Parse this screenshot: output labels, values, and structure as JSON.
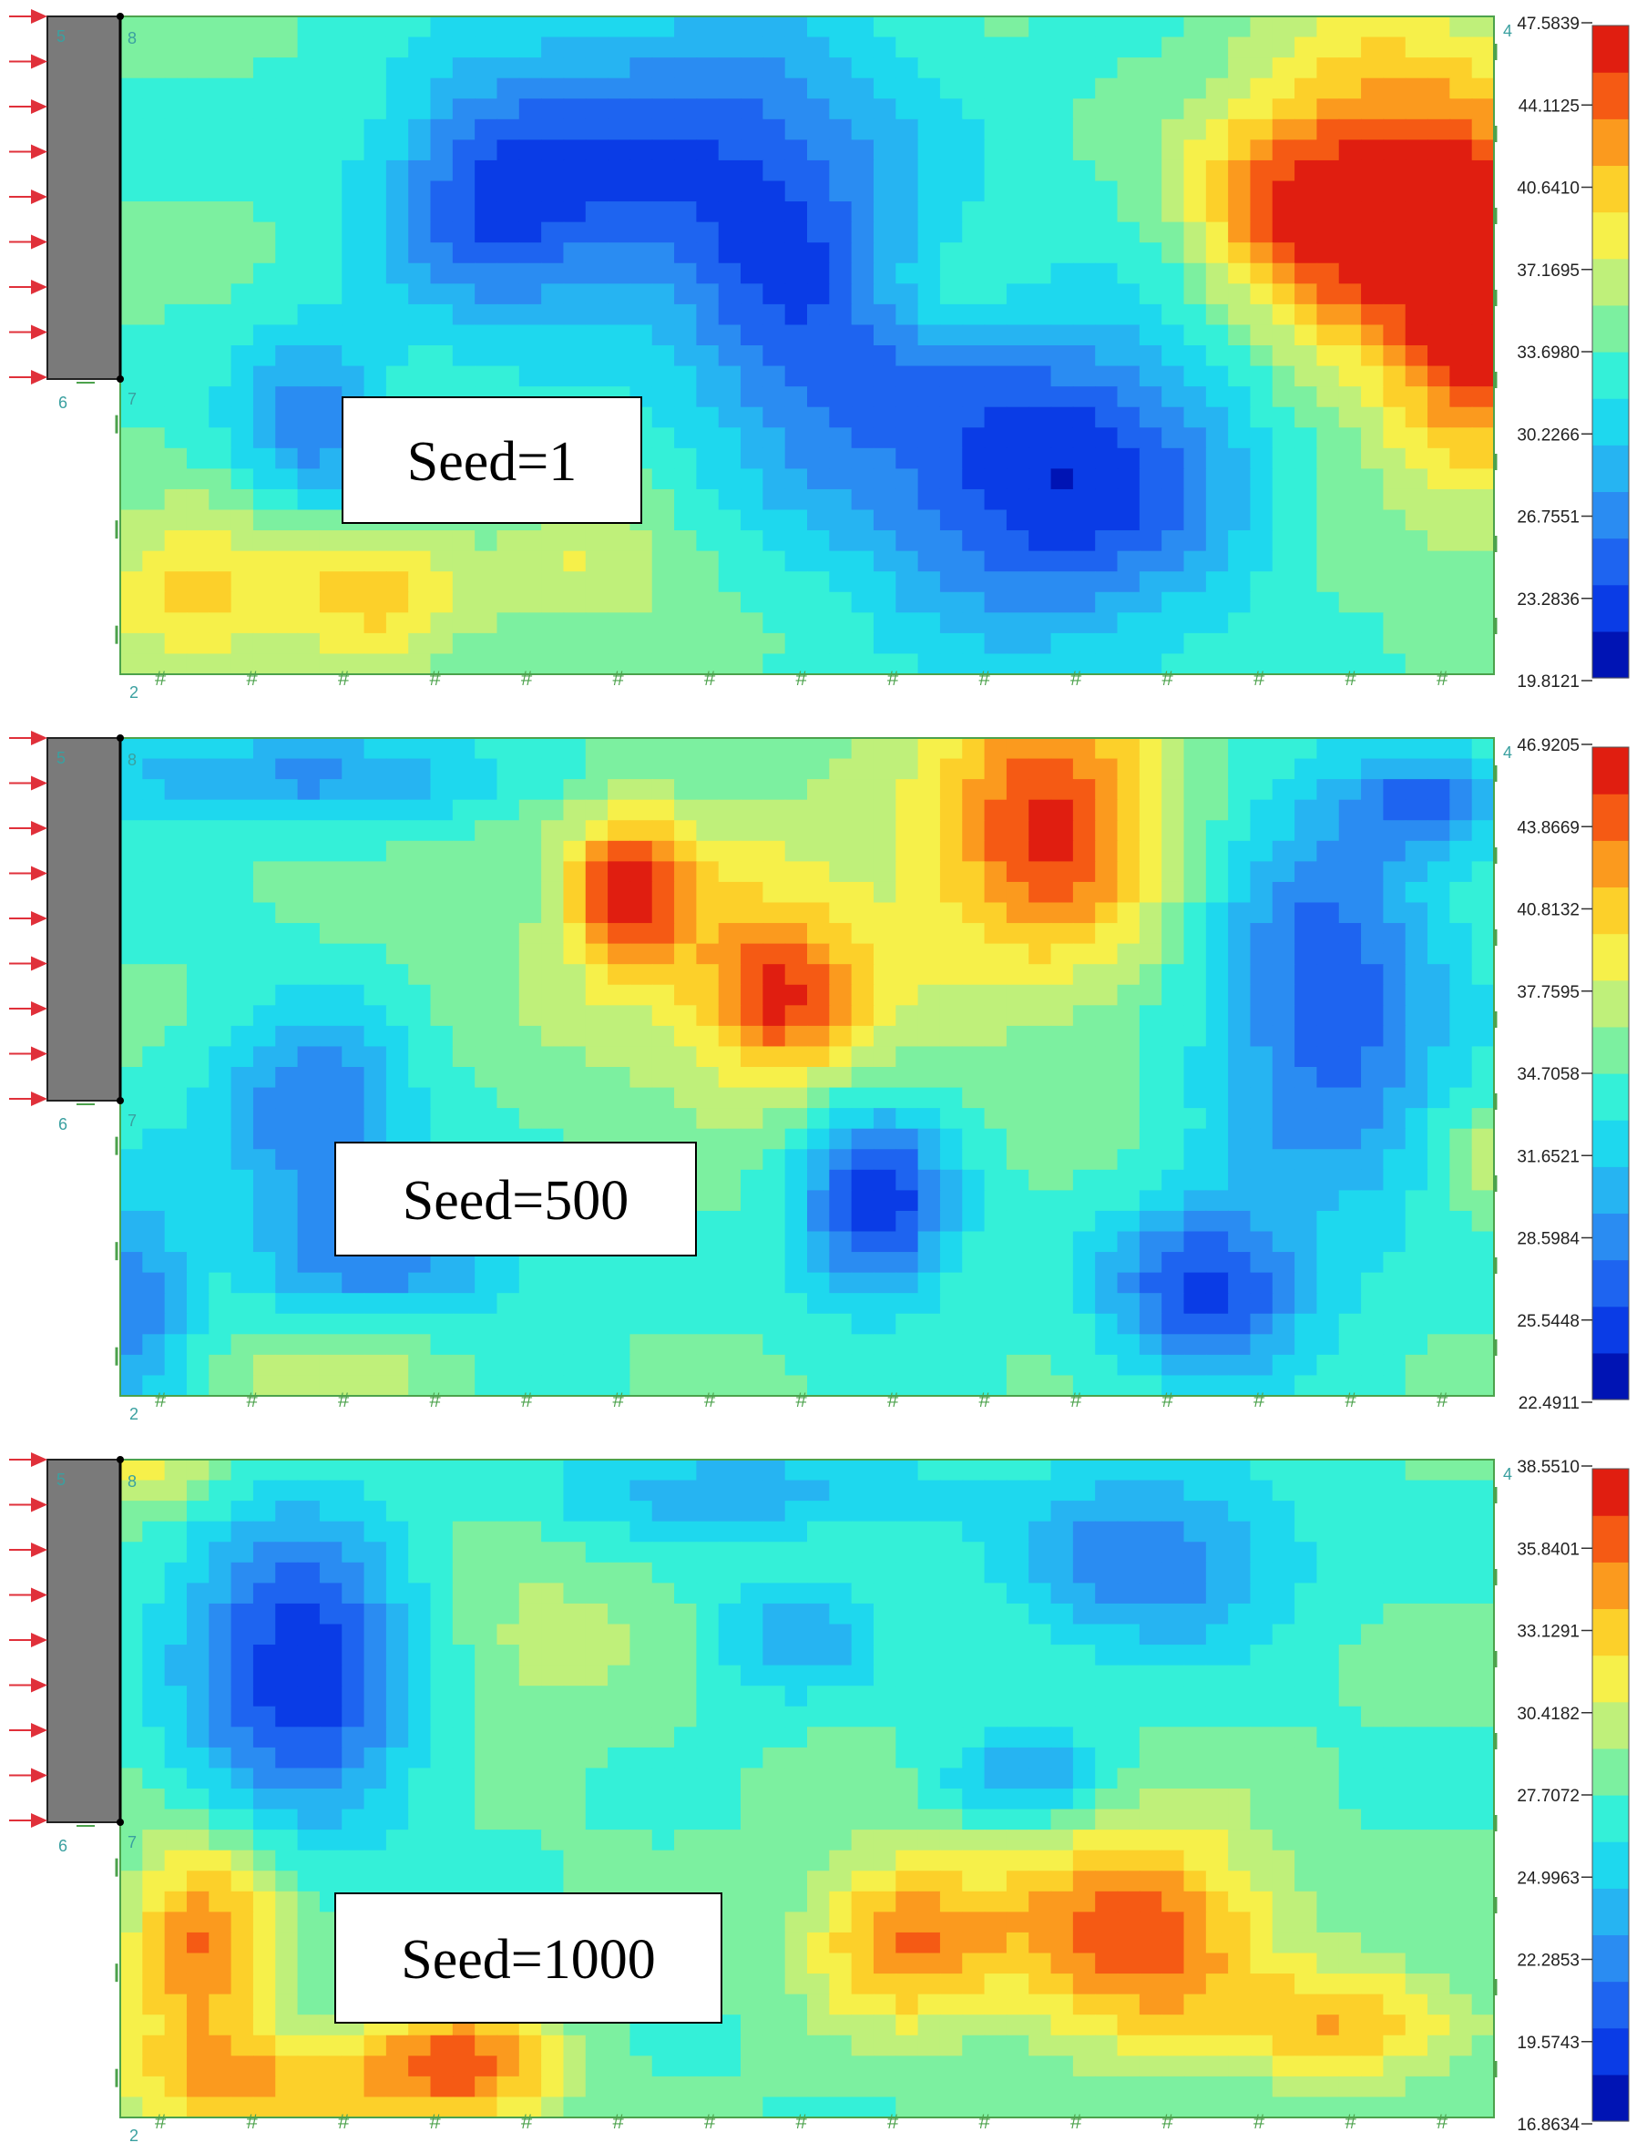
{
  "colors": {
    "scale": [
      "#0014b4",
      "#0a3ce6",
      "#1e64f0",
      "#2a8cf2",
      "#26b4f2",
      "#1ed8ee",
      "#34f0d8",
      "#7cf0a0",
      "#bff07a",
      "#f6f04a",
      "#fcd02a",
      "#fb9a1e",
      "#f55a14",
      "#e01e10"
    ],
    "wall": "#7a7a7a",
    "arrow": "#e0303a",
    "border": "#4ca24c",
    "node_label": "#3aa0a0"
  },
  "node_labels": [
    "5",
    "6",
    "7",
    "8",
    "4",
    "2"
  ],
  "chart_data": [
    {
      "type": "heatmap",
      "label": "Seed=1",
      "colorbar_ticks": [
        "47.5839",
        "44.1125",
        "40.6410",
        "37.1695",
        "33.6980",
        "30.2266",
        "26.7551",
        "23.2836",
        "19.8121"
      ],
      "range": [
        19.8121,
        47.5839
      ],
      "blobs": [
        {
          "x": 0.92,
          "y": 0.3,
          "sx": 0.07,
          "sy": 0.2,
          "v": 1.0
        },
        {
          "x": 0.99,
          "y": 0.45,
          "sx": 0.04,
          "sy": 0.2,
          "v": 0.8
        },
        {
          "x": 0.84,
          "y": 0.28,
          "sx": 0.05,
          "sy": 0.1,
          "v": 0.5
        },
        {
          "x": 0.68,
          "y": 0.7,
          "sx": 0.1,
          "sy": 0.17,
          "v": -1.0
        },
        {
          "x": 0.43,
          "y": 0.22,
          "sx": 0.1,
          "sy": 0.16,
          "v": -0.8
        },
        {
          "x": 0.27,
          "y": 0.28,
          "sx": 0.06,
          "sy": 0.14,
          "v": -0.7
        },
        {
          "x": 0.14,
          "y": 0.62,
          "sx": 0.04,
          "sy": 0.1,
          "v": -0.6
        },
        {
          "x": 0.5,
          "y": 0.5,
          "sx": 0.06,
          "sy": 0.15,
          "v": -0.6
        },
        {
          "x": 0.05,
          "y": 0.88,
          "sx": 0.05,
          "sy": 0.09,
          "v": 0.55
        },
        {
          "x": 0.18,
          "y": 0.87,
          "sx": 0.05,
          "sy": 0.08,
          "v": 0.55
        },
        {
          "x": 0.34,
          "y": 0.85,
          "sx": 0.05,
          "sy": 0.07,
          "v": 0.35
        },
        {
          "x": 0.6,
          "y": 0.43,
          "sx": 0.05,
          "sy": 0.06,
          "v": 0.2
        },
        {
          "x": 0.88,
          "y": 0.85,
          "sx": 0.05,
          "sy": 0.08,
          "v": 0.1
        }
      ]
    },
    {
      "type": "heatmap",
      "label": "Seed=500",
      "colorbar_ticks": [
        "46.9205",
        "43.8669",
        "40.8132",
        "37.7595",
        "34.7058",
        "31.6521",
        "28.5984",
        "25.5448",
        "22.4911"
      ],
      "range": [
        22.4911,
        46.9205
      ],
      "blobs": [
        {
          "x": 0.68,
          "y": 0.12,
          "sx": 0.06,
          "sy": 0.16,
          "v": 1.0
        },
        {
          "x": 0.37,
          "y": 0.23,
          "sx": 0.03,
          "sy": 0.08,
          "v": 0.9
        },
        {
          "x": 0.48,
          "y": 0.4,
          "sx": 0.04,
          "sy": 0.08,
          "v": 0.75
        },
        {
          "x": 0.46,
          "y": 0.3,
          "sx": 0.12,
          "sy": 0.18,
          "v": 0.4
        },
        {
          "x": 0.55,
          "y": 0.71,
          "sx": 0.04,
          "sy": 0.1,
          "v": -1.0
        },
        {
          "x": 0.79,
          "y": 0.84,
          "sx": 0.05,
          "sy": 0.09,
          "v": -0.9
        },
        {
          "x": 0.88,
          "y": 0.4,
          "sx": 0.06,
          "sy": 0.22,
          "v": -0.8
        },
        {
          "x": 0.14,
          "y": 0.58,
          "sx": 0.05,
          "sy": 0.12,
          "v": -0.7
        },
        {
          "x": 0.01,
          "y": 0.85,
          "sx": 0.03,
          "sy": 0.12,
          "v": -0.6
        },
        {
          "x": 0.2,
          "y": 0.8,
          "sx": 0.07,
          "sy": 0.06,
          "v": -0.5
        },
        {
          "x": 0.12,
          "y": 0.06,
          "sx": 0.14,
          "sy": 0.05,
          "v": -0.5
        },
        {
          "x": 0.95,
          "y": 0.1,
          "sx": 0.04,
          "sy": 0.05,
          "v": -0.6
        },
        {
          "x": 0.99,
          "y": 0.65,
          "sx": 0.02,
          "sy": 0.06,
          "v": 0.3
        },
        {
          "x": 0.15,
          "y": 0.97,
          "sx": 0.05,
          "sy": 0.05,
          "v": 0.3
        }
      ]
    },
    {
      "type": "heatmap",
      "label": "Seed=1000",
      "colorbar_ticks": [
        "38.5510",
        "35.8401",
        "33.1291",
        "30.4182",
        "27.7072",
        "24.9963",
        "22.2853",
        "19.5743",
        "16.8634"
      ],
      "range": [
        16.8634,
        38.551
      ],
      "blobs": [
        {
          "x": 0.74,
          "y": 0.72,
          "sx": 0.07,
          "sy": 0.12,
          "v": 0.95
        },
        {
          "x": 0.57,
          "y": 0.73,
          "sx": 0.05,
          "sy": 0.09,
          "v": 0.8
        },
        {
          "x": 0.9,
          "y": 0.86,
          "sx": 0.06,
          "sy": 0.06,
          "v": 0.65
        },
        {
          "x": 0.06,
          "y": 0.74,
          "sx": 0.04,
          "sy": 0.12,
          "v": 0.85
        },
        {
          "x": 0.25,
          "y": 0.92,
          "sx": 0.05,
          "sy": 0.07,
          "v": 0.85
        },
        {
          "x": 0.1,
          "y": 0.95,
          "sx": 0.08,
          "sy": 0.06,
          "v": 0.6
        },
        {
          "x": 0.02,
          "y": 0.02,
          "sx": 0.04,
          "sy": 0.04,
          "v": 0.4
        },
        {
          "x": 0.13,
          "y": 0.32,
          "sx": 0.06,
          "sy": 0.16,
          "v": -1.0
        },
        {
          "x": 0.75,
          "y": 0.15,
          "sx": 0.07,
          "sy": 0.1,
          "v": -0.65
        },
        {
          "x": 0.45,
          "y": 0.05,
          "sx": 0.1,
          "sy": 0.05,
          "v": -0.45
        },
        {
          "x": 0.49,
          "y": 0.27,
          "sx": 0.04,
          "sy": 0.06,
          "v": -0.45
        },
        {
          "x": 0.66,
          "y": 0.48,
          "sx": 0.04,
          "sy": 0.05,
          "v": -0.5
        },
        {
          "x": 0.3,
          "y": 0.28,
          "sx": 0.06,
          "sy": 0.1,
          "v": 0.25
        }
      ]
    }
  ]
}
